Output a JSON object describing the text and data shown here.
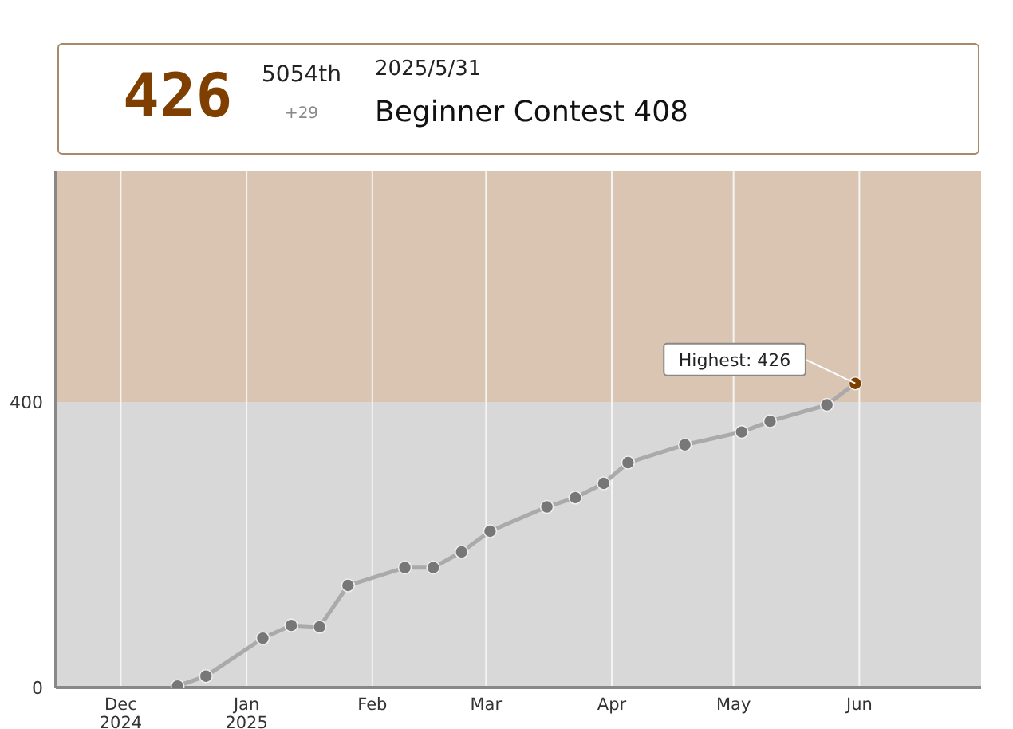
{
  "chart_data": {
    "type": "line",
    "title": "Beginner Contest 408",
    "subtitle": "2025/5/31",
    "annotations": [
      "426",
      "5054th",
      "+29",
      {
        "text": "Highest: 426",
        "x": "2025-05-31",
        "y": 426
      }
    ],
    "x": [
      "2024-12-15",
      "2024-12-22",
      "2025-01-05",
      "2025-01-12",
      "2025-01-19",
      "2025-01-26",
      "2025-02-09",
      "2025-02-16",
      "2025-02-23",
      "2025-03-02",
      "2025-03-16",
      "2025-03-23",
      "2025-03-30",
      "2025-04-05",
      "2025-04-19",
      "2025-05-03",
      "2025-05-10",
      "2025-05-24",
      "2025-05-31"
    ],
    "series": [
      {
        "color": "#aaaaaa",
        "colors": [
          "#777777",
          "#777777",
          "#777777",
          "#777777",
          "#777777",
          "#777777",
          "#777777",
          "#777777",
          "#777777",
          "#777777",
          "#777777",
          "#777777",
          "#777777",
          "#777777",
          "#777777",
          "#777777",
          "#777777",
          "#777777",
          "#7f3f00"
        ],
        "values": [
          2,
          16,
          69,
          87,
          85,
          143,
          168,
          168,
          190,
          219,
          253,
          266,
          286,
          315,
          340,
          358,
          373,
          396,
          426
        ]
      }
    ],
    "xlim": [
      "2024-11-15",
      "2025-07-01"
    ],
    "xticks": [
      {
        "value": "2024-12-01",
        "label": "Dec\n2024"
      },
      {
        "value": "2025-01-01",
        "label": "Jan\n2025"
      },
      {
        "value": "2025-02-01",
        "label": "Feb"
      },
      {
        "value": "2025-03-01",
        "label": "Mar"
      },
      {
        "value": "2025-04-01",
        "label": "Apr"
      },
      {
        "value": "2025-05-01",
        "label": "May"
      },
      {
        "value": "2025-06-01",
        "label": "Jun"
      }
    ],
    "ylim": [
      0,
      724
    ],
    "yticks": [
      0,
      400
    ],
    "bands": [
      {
        "axis": "y",
        "from": 0,
        "to": 400,
        "color": "#d8d8d8"
      },
      {
        "axis": "y",
        "from": 400,
        "to": 724,
        "color": "#d9c5b2"
      }
    ],
    "grid": "x",
    "marker": "circle",
    "line_style": "solid"
  }
}
